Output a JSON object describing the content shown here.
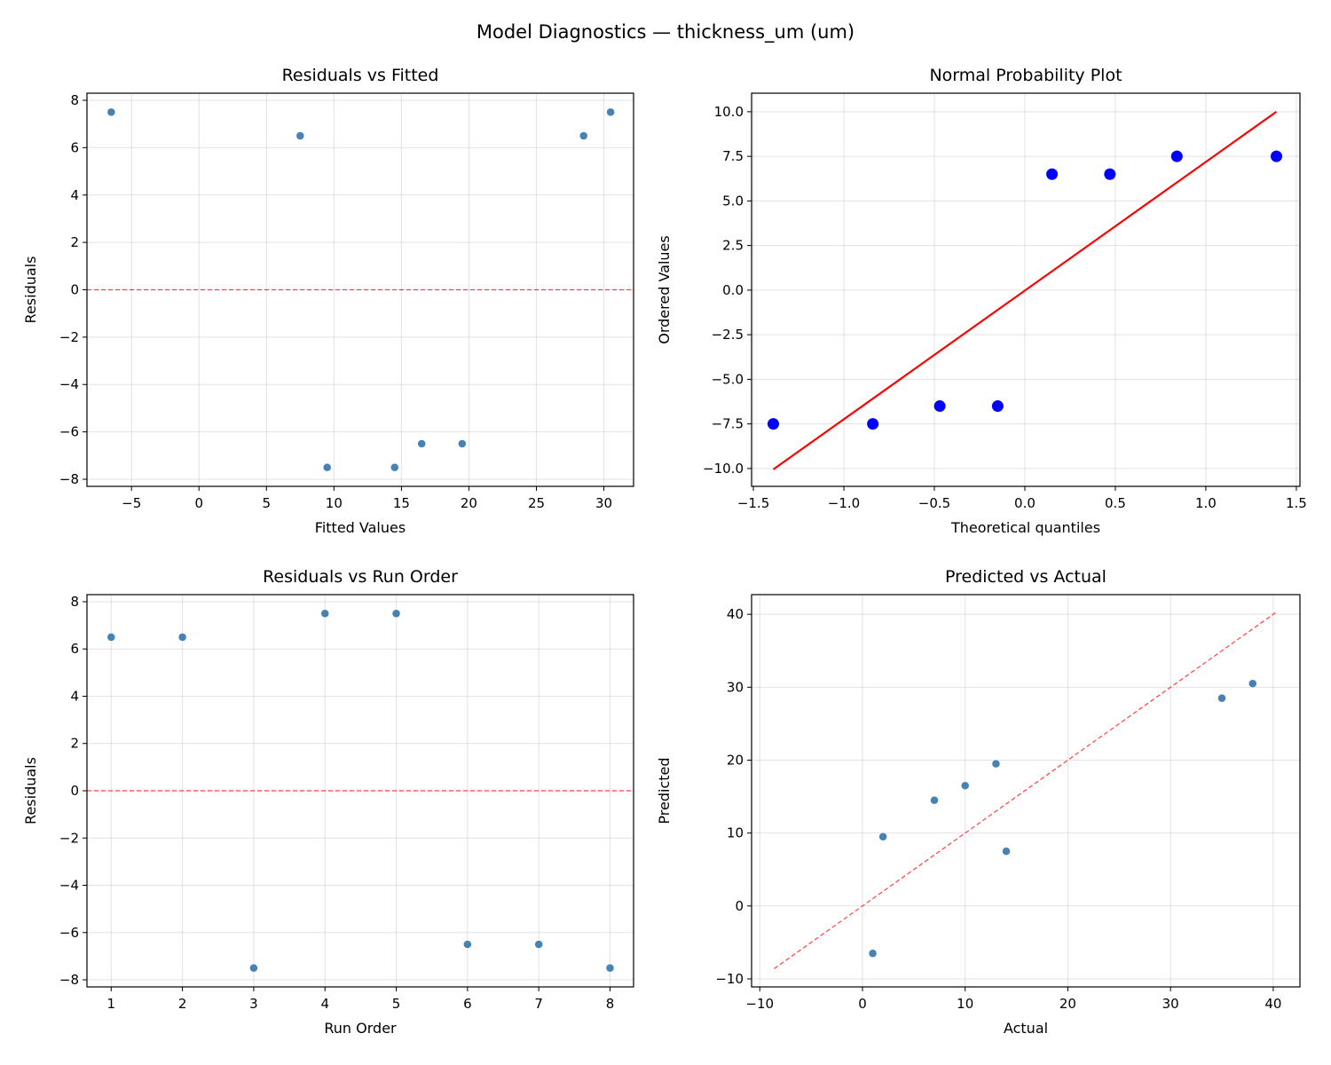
{
  "suptitle": "Model Diagnostics — thickness_um (um)",
  "chart_data": [
    {
      "type": "scatter",
      "title": "Residuals vs Fitted",
      "xlabel": "Fitted Values",
      "ylabel": "Residuals",
      "xlim": [
        -8.3,
        32.2
      ],
      "ylim": [
        -8.3,
        8.3
      ],
      "xticks": [
        -5,
        0,
        5,
        10,
        15,
        20,
        25,
        30
      ],
      "yticks": [
        -8,
        -6,
        -4,
        -2,
        0,
        2,
        4,
        6,
        8
      ],
      "tick_decimals": [
        0,
        0
      ],
      "grid": true,
      "points": {
        "x": [
          -6.5,
          7.5,
          9.5,
          14.5,
          16.5,
          19.5,
          28.5,
          30.5
        ],
        "y": [
          7.5,
          6.5,
          -7.5,
          -7.5,
          -6.5,
          -6.5,
          6.5,
          7.5
        ]
      },
      "point_color": "#4682b4",
      "reference_line": {
        "type": "hline",
        "y": 0,
        "style": "dashed",
        "color": "#ff0000"
      }
    },
    {
      "type": "scatter",
      "title": "Normal Probability Plot",
      "xlabel": "Theoretical quantiles",
      "ylabel": "Ordered Values",
      "xlim": [
        -1.51,
        1.52
      ],
      "ylim": [
        -11.0,
        11.04
      ],
      "xticks": [
        -1.5,
        -1.0,
        -0.5,
        0.0,
        0.5,
        1.0,
        1.5
      ],
      "yticks": [
        -10.0,
        -7.5,
        -5.0,
        -2.5,
        0.0,
        2.5,
        5.0,
        7.5,
        10.0
      ],
      "tick_decimals": [
        1,
        1
      ],
      "grid": true,
      "points": {
        "x": [
          -1.39,
          -0.84,
          -0.47,
          -0.15,
          0.15,
          0.47,
          0.84,
          1.39
        ],
        "y": [
          -7.5,
          -7.5,
          -6.5,
          -6.5,
          6.5,
          6.5,
          7.5,
          7.5
        ]
      },
      "point_color": "#0000ff",
      "reference_line": {
        "type": "segment",
        "x": [
          -1.39,
          1.39
        ],
        "y": [
          -10.05,
          10.0
        ],
        "style": "solid",
        "color": "#ff0000"
      }
    },
    {
      "type": "scatter",
      "title": "Residuals vs Run Order",
      "xlabel": "Run Order",
      "ylabel": "Residuals",
      "xlim": [
        0.66,
        8.33
      ],
      "ylim": [
        -8.3,
        8.3
      ],
      "xticks": [
        1,
        2,
        3,
        4,
        5,
        6,
        7,
        8
      ],
      "yticks": [
        -8,
        -6,
        -4,
        -2,
        0,
        2,
        4,
        6,
        8
      ],
      "tick_decimals": [
        0,
        0
      ],
      "grid": true,
      "points": {
        "x": [
          1,
          2,
          3,
          4,
          5,
          6,
          7,
          8
        ],
        "y": [
          6.5,
          6.5,
          -7.5,
          7.5,
          7.5,
          -6.5,
          -6.5,
          -7.5
        ]
      },
      "point_color": "#4682b4",
      "reference_line": {
        "type": "hline",
        "y": 0,
        "style": "dashed",
        "color": "#ff0000"
      }
    },
    {
      "type": "scatter",
      "title": "Predicted vs Actual",
      "xlabel": "Actual",
      "ylabel": "Predicted",
      "xlim": [
        -10.8,
        42.6
      ],
      "ylim": [
        -11.1,
        42.7
      ],
      "xticks": [
        -10,
        0,
        10,
        20,
        30,
        40
      ],
      "yticks": [
        -10,
        0,
        10,
        20,
        30,
        40
      ],
      "tick_decimals": [
        0,
        0
      ],
      "grid": true,
      "points": {
        "x": [
          1,
          2,
          7,
          10,
          13,
          14,
          35,
          38
        ],
        "y": [
          -6.5,
          9.5,
          14.5,
          16.5,
          19.5,
          7.5,
          28.5,
          30.5
        ]
      },
      "point_color": "#4682b4",
      "reference_line": {
        "type": "segment",
        "x": [
          -8.6,
          40.2
        ],
        "y": [
          -8.6,
          40.2
        ],
        "style": "dashed",
        "color": "#ff0000"
      }
    }
  ]
}
